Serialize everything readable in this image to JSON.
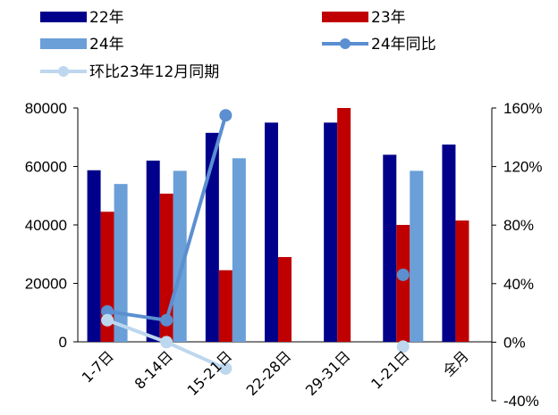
{
  "chart_data": {
    "type": "bar",
    "categories": [
      "1-7日",
      "8-14日",
      "15-21日",
      "22-28日",
      "29-31日",
      "1-21日",
      "全月"
    ],
    "series": [
      {
        "name": "22年",
        "kind": "bar",
        "axis": "left",
        "color": "#00008B",
        "values": [
          58700,
          62000,
          71500,
          75000,
          75000,
          64000,
          67500
        ]
      },
      {
        "name": "23年",
        "kind": "bar",
        "axis": "left",
        "color": "#C00000",
        "values": [
          44500,
          50700,
          24500,
          29000,
          80000,
          40000,
          41500
        ]
      },
      {
        "name": "24年",
        "kind": "bar",
        "axis": "left",
        "color": "#6A9FD8",
        "values": [
          54000,
          58500,
          62800,
          null,
          null,
          58500,
          null
        ]
      },
      {
        "name": "24年同比",
        "kind": "line",
        "axis": "right",
        "color": "#5B8FD0",
        "values": [
          21,
          15,
          155,
          null,
          null,
          46,
          null
        ]
      },
      {
        "name": "环比23年12月同期",
        "kind": "line",
        "axis": "right",
        "color": "#BDD7EE",
        "values": [
          15,
          0,
          -18,
          null,
          null,
          -3,
          null
        ]
      }
    ],
    "left_axis": {
      "ylim": [
        0,
        80000
      ],
      "ticks": [
        "80000",
        "60000",
        "40000",
        "20000",
        "0"
      ]
    },
    "right_axis": {
      "ylim": [
        -40,
        160
      ],
      "ticks": [
        "160%",
        "120%",
        "80%",
        "40%",
        "0%",
        "-40%"
      ]
    },
    "legend": "top"
  }
}
